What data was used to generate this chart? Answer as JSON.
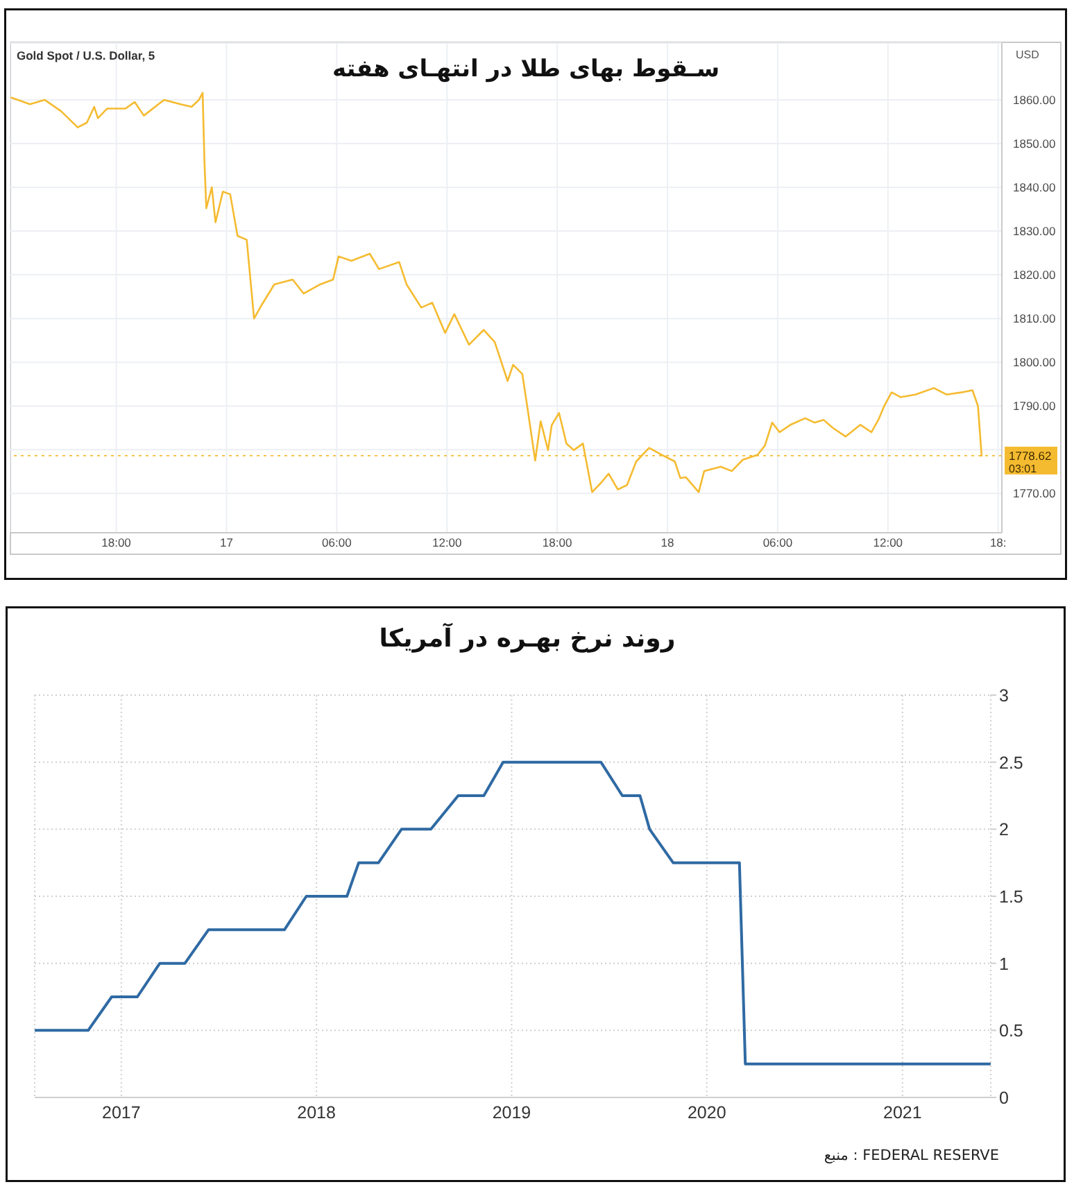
{
  "chart_data": [
    {
      "type": "line",
      "title": "سـقوط بهای طلا در انتهـای هفته",
      "subtitle": "Gold Spot / U.S. Dollar, 5",
      "ylabel": "USD",
      "annotations": [
        "03:01"
      ],
      "color": "#f5bb30",
      "x": [
        "--06-16T12:18",
        "--06-16T13:18",
        "--06-16T14:06",
        "--06-16T15:00",
        "--06-16T15:54",
        "--06-16T16:24",
        "--06-16T16:48",
        "--06-16T17:00",
        "--06-16T17:30",
        "--06-16T18:30",
        "--06-16T19:00",
        "--06-16T19:30",
        "--06-16T20:36",
        "--06-16T21:30",
        "--06-16T22:06",
        "--06-16T22:30",
        "--06-16T22:42",
        "--06-16T22:48",
        "--06-16T22:54",
        "--06-16T23:12",
        "--06-16T23:24",
        "--06-16T23:48",
        "--06-17T00:12",
        "--06-17T00:36",
        "--06-17T01:06",
        "--06-17T01:30",
        "--06-17T01:54",
        "--06-17T02:36",
        "--06-17T03:36",
        "--06-17T04:12",
        "--06-17T05:06",
        "--06-17T05:48",
        "--06-17T06:06",
        "--06-17T06:48",
        "--06-17T07:48",
        "--06-17T08:18",
        "--06-17T09:24",
        "--06-17T09:48",
        "--06-17T10:36",
        "--06-17T11:12",
        "--06-17T11:54",
        "--06-17T12:24",
        "--06-17T13:12",
        "--06-17T14:00",
        "--06-17T14:36",
        "--06-17T15:18",
        "--06-17T15:36",
        "--06-17T16:06",
        "--06-17T16:24",
        "--06-17T16:48",
        "--06-17T17:06",
        "--06-17T17:30",
        "--06-17T17:42",
        "--06-17T18:06",
        "--06-17T18:30",
        "--06-17T18:54",
        "--06-17T19:24",
        "--06-17T19:54",
        "--06-17T20:24",
        "--06-17T20:48",
        "--06-17T21:18",
        "--06-17T21:48",
        "--06-17T22:18",
        "--06-17T23:00",
        "--06-17T23:42",
        "--06-18T00:24",
        "--06-18T00:42",
        "--06-18T01:00",
        "--06-18T01:42",
        "--06-18T02:00",
        "--06-18T02:54",
        "--06-18T03:30",
        "--06-18T04:06",
        "--06-18T04:54",
        "--06-18T05:18",
        "--06-18T05:42",
        "--06-18T06:06",
        "--06-18T06:42",
        "--06-18T07:30",
        "--06-18T08:00",
        "--06-18T08:30",
        "--06-18T09:00",
        "--06-18T09:42",
        "--06-18T10:30",
        "--06-18T11:06",
        "--06-18T11:30",
        "--06-18T11:48",
        "--06-18T12:12",
        "--06-18T12:42",
        "--06-18T13:30",
        "--06-18T14:30",
        "--06-18T15:12",
        "--06-18T16:00",
        "--06-18T16:36",
        "--06-18T16:54",
        "--06-18T17:06"
      ],
      "values": [
        1860.5,
        1859,
        1860,
        1857.4,
        1853.7,
        1854.8,
        1858.4,
        1855.8,
        1858,
        1858,
        1859.5,
        1856.4,
        1860,
        1859,
        1858.4,
        1860,
        1861.6,
        1845.8,
        1835.2,
        1840,
        1832,
        1839,
        1838.4,
        1828.9,
        1828,
        1810,
        1813,
        1817.8,
        1818.9,
        1815.7,
        1817.8,
        1818.9,
        1824.2,
        1823.2,
        1824.8,
        1821.3,
        1822.9,
        1817.8,
        1812.5,
        1813.6,
        1806.7,
        1811,
        1804,
        1807.4,
        1804.6,
        1795.7,
        1799.4,
        1797.3,
        1789,
        1777.5,
        1786.5,
        1779.9,
        1785.6,
        1788.4,
        1781.4,
        1779.9,
        1781.4,
        1770.3,
        1772.5,
        1774.5,
        1770.9,
        1771.9,
        1777.3,
        1780.4,
        1778.8,
        1777.3,
        1773.5,
        1773.7,
        1770.3,
        1775.1,
        1776.1,
        1775.1,
        1777.7,
        1778.8,
        1780.9,
        1786.2,
        1784,
        1785.7,
        1787.2,
        1786.2,
        1786.8,
        1785,
        1783,
        1785.7,
        1784,
        1787,
        1790,
        1793.1,
        1792,
        1792.6,
        1794.1,
        1792.6,
        1793.1,
        1793.6,
        1790,
        1778.6
      ],
      "xlim": [
        "--06-16T12:12",
        "--06-18T18:12"
      ],
      "xticks": [
        {
          "value": "--06-16T18:00",
          "label": "18:00"
        },
        {
          "value": "--06-17",
          "label": "17"
        },
        {
          "value": "--06-17T06:00",
          "label": "06:00"
        },
        {
          "value": "--06-17T12:00",
          "label": "12:00"
        },
        {
          "value": "--06-17T18:00",
          "label": "18:00"
        },
        {
          "value": "--06-18",
          "label": "18"
        },
        {
          "value": "--06-18T06:00",
          "label": "06:00"
        },
        {
          "value": "--06-18T12:00",
          "label": "12:00"
        },
        {
          "value": "--06-18T18:00",
          "label": "18:"
        }
      ],
      "ylim": [
        1761,
        1873
      ],
      "yticks": [
        {
          "value": 1770,
          "label": "1770.00"
        },
        {
          "value": 1780,
          "label": null
        },
        {
          "value": 1790,
          "label": "1790.00"
        },
        {
          "value": 1800,
          "label": "1800.00"
        },
        {
          "value": 1810,
          "label": "1810.00"
        },
        {
          "value": 1820,
          "label": "1820.00"
        },
        {
          "value": 1830,
          "label": "1830.00"
        },
        {
          "value": 1840,
          "label": "1840.00"
        },
        {
          "value": 1850,
          "label": "1850.00"
        },
        {
          "value": 1860,
          "label": "1860.00"
        }
      ],
      "ref_lines": [
        {
          "axis": "y",
          "value": 1778.62,
          "label": "1778.62",
          "color": "#f5bb30",
          "line_style": "dotted"
        }
      ],
      "grid": true
    },
    {
      "type": "line",
      "title": "روند نرخ بهـره در آمریکا",
      "annotations": [
        "منبع : FEDERAL RESERVE"
      ],
      "color": "#2f6aa3",
      "x": [
        "2016-07-25",
        "2016-10-31",
        "2016-12-14",
        "2017-01-31",
        "2017-03-14",
        "2017-04-30",
        "2017-06-13",
        "2017-11-02",
        "2017-12-13",
        "2018-02-27",
        "2018-03-21",
        "2018-04-27",
        "2018-06-09",
        "2018-08-03",
        "2018-09-23",
        "2018-11-10",
        "2018-12-16",
        "2019-06-17",
        "2019-07-27",
        "2019-08-29",
        "2019-09-16",
        "2019-10-30",
        "2020-03-02",
        "2020-03-13",
        "2021-06-13"
      ],
      "values": [
        0.5,
        0.5,
        0.75,
        0.75,
        1,
        1,
        1.25,
        1.25,
        1.5,
        1.5,
        1.75,
        1.75,
        2,
        2,
        2.25,
        2.25,
        2.5,
        2.5,
        2.25,
        2.25,
        2,
        1.75,
        1.75,
        0.25,
        0.25
      ],
      "xlim": [
        "2016-07-23",
        "2021-06-15"
      ],
      "xticks": [
        "2017",
        "2018",
        "2019",
        "2020",
        "2021"
      ],
      "ylim": [
        0,
        3
      ],
      "yticks": [
        0,
        0.5,
        1,
        1.5,
        2,
        2.5,
        3
      ],
      "grid": true
    }
  ]
}
